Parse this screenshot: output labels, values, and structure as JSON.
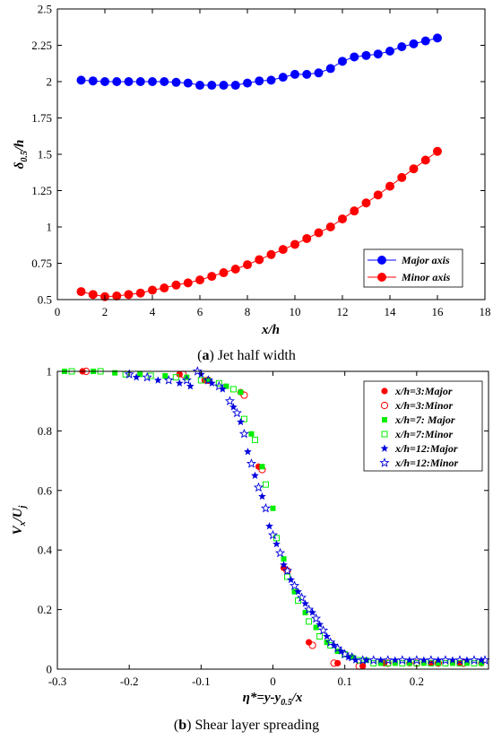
{
  "chart_data": [
    {
      "type": "scatter",
      "caption_label": "a",
      "caption_text": "Jet half width",
      "xlabel": "x/h",
      "ylabel_main": "δ",
      "ylabel_sub": "0.5",
      "ylabel_tail": "/h",
      "xlim": [
        0,
        18
      ],
      "ylim": [
        0.5,
        2.5
      ],
      "xticks": [
        "0",
        "2",
        "4",
        "6",
        "8",
        "10",
        "12",
        "14",
        "16",
        "18"
      ],
      "xtick_values": [
        0,
        2,
        4,
        6,
        8,
        10,
        12,
        14,
        16,
        18
      ],
      "yticks": [
        "0.5",
        "0.75",
        "1",
        "1.25",
        "1.5",
        "1.75",
        "2",
        "2.25",
        "2.5"
      ],
      "ytick_values": [
        0.5,
        0.75,
        1,
        1.25,
        1.5,
        1.75,
        2,
        2.25,
        2.5
      ],
      "legend_position": "lower-right",
      "series": [
        {
          "name": "Major axis",
          "color": "#0000ff",
          "marker": "circle",
          "line": true,
          "x": [
            1.0,
            1.5,
            2.0,
            2.5,
            3.0,
            3.5,
            4.0,
            4.5,
            5.0,
            5.5,
            6.0,
            6.5,
            7.0,
            7.5,
            8.0,
            8.5,
            9.0,
            9.5,
            10.0,
            10.5,
            11.0,
            11.5,
            12.0,
            12.5,
            13.0,
            13.5,
            14.0,
            14.5,
            15.0,
            15.5,
            16.0
          ],
          "y": [
            2.01,
            2.005,
            2.0,
            2.0,
            2.0,
            2.0,
            2.0,
            2.0,
            1.995,
            1.99,
            1.975,
            1.975,
            1.975,
            1.975,
            1.99,
            2.005,
            2.01,
            2.03,
            2.05,
            2.05,
            2.06,
            2.09,
            2.14,
            2.17,
            2.18,
            2.19,
            2.21,
            2.24,
            2.26,
            2.28,
            2.3
          ]
        },
        {
          "name": "Minor axis",
          "color": "#ff0000",
          "marker": "circle",
          "line": true,
          "x": [
            1.0,
            1.5,
            2.0,
            2.5,
            3.0,
            3.5,
            4.0,
            4.5,
            5.0,
            5.5,
            6.0,
            6.5,
            7.0,
            7.5,
            8.0,
            8.5,
            9.0,
            9.5,
            10.0,
            10.5,
            11.0,
            11.5,
            12.0,
            12.5,
            13.0,
            13.5,
            14.0,
            14.5,
            15.0,
            15.5,
            16.0
          ],
          "y": [
            0.555,
            0.535,
            0.52,
            0.525,
            0.535,
            0.545,
            0.565,
            0.58,
            0.6,
            0.615,
            0.635,
            0.66,
            0.685,
            0.71,
            0.74,
            0.775,
            0.81,
            0.845,
            0.88,
            0.92,
            0.96,
            1.0,
            1.055,
            1.11,
            1.165,
            1.22,
            1.28,
            1.34,
            1.4,
            1.46,
            1.52
          ]
        }
      ]
    },
    {
      "type": "scatter",
      "caption_label": "b",
      "caption_text": "Shear layer spreading",
      "xlabel_main": "η*=y-y",
      "xlabel_sub": "0.5",
      "xlabel_tail": "/x",
      "ylabel_main": "V",
      "ylabel_sub1": "x",
      "ylabel_mid": "/U",
      "ylabel_sub2": "j",
      "xlim": [
        -0.3,
        0.3
      ],
      "ylim": [
        0,
        1
      ],
      "xticks": [
        "-0.3",
        "-0.2",
        "-0.1",
        "0",
        "0.1",
        "0.2"
      ],
      "xtick_values": [
        -0.3,
        -0.2,
        -0.1,
        0,
        0.1,
        0.2
      ],
      "yticks": [
        "0",
        "0.2",
        "0.4",
        "0.6",
        "0.8",
        "1"
      ],
      "ytick_values": [
        0,
        0.2,
        0.4,
        0.6,
        0.8,
        1
      ],
      "legend_position": "top-right",
      "series": [
        {
          "name": "x/h=3:Major",
          "color": "#ff0000",
          "marker": "circle-filled",
          "x": [
            -0.265,
            -0.13,
            -0.095,
            -0.045,
            -0.02,
            0.015,
            0.05,
            0.09,
            0.125,
            0.155,
            0.19,
            0.22,
            0.26,
            0.29
          ],
          "y": [
            1.0,
            0.99,
            0.97,
            0.93,
            0.68,
            0.34,
            0.09,
            0.02,
            0.01,
            0.02,
            0.02,
            0.02,
            0.02,
            0.02
          ]
        },
        {
          "name": "x/h=3:Minor",
          "color": "#ff0000",
          "marker": "circle-open",
          "x": [
            -0.26,
            -0.125,
            -0.09,
            -0.04,
            -0.015,
            0.02,
            0.055,
            0.085,
            0.12,
            0.16,
            0.2,
            0.23,
            0.265
          ],
          "y": [
            1.0,
            0.99,
            0.97,
            0.92,
            0.67,
            0.33,
            0.08,
            0.02,
            0.01,
            0.02,
            0.02,
            0.02,
            0.02
          ]
        },
        {
          "name": "x/h=7: Major",
          "color": "#00ee00",
          "marker": "square-filled",
          "x": [
            -0.29,
            -0.25,
            -0.22,
            -0.185,
            -0.15,
            -0.12,
            -0.09,
            -0.065,
            -0.045,
            -0.03,
            -0.015,
            0.0,
            0.015,
            0.03,
            0.045,
            0.06,
            0.075,
            0.09,
            0.11,
            0.13,
            0.15,
            0.17,
            0.19,
            0.21,
            0.23,
            0.25,
            0.27,
            0.29
          ],
          "y": [
            1.0,
            1.0,
            0.995,
            0.99,
            0.985,
            0.98,
            0.97,
            0.95,
            0.93,
            0.79,
            0.68,
            0.54,
            0.37,
            0.26,
            0.19,
            0.14,
            0.09,
            0.06,
            0.04,
            0.03,
            0.02,
            0.02,
            0.02,
            0.02,
            0.02,
            0.02,
            0.02,
            0.02
          ]
        },
        {
          "name": "x/h=7:Minor",
          "color": "#00ee00",
          "marker": "square-open",
          "x": [
            -0.28,
            -0.24,
            -0.205,
            -0.17,
            -0.135,
            -0.1,
            -0.075,
            -0.055,
            -0.04,
            -0.025,
            -0.01,
            0.005,
            0.02,
            0.035,
            0.05,
            0.065,
            0.08,
            0.1,
            0.12,
            0.14,
            0.16,
            0.18,
            0.2,
            0.22,
            0.24,
            0.26,
            0.28
          ],
          "y": [
            1.0,
            1.0,
            0.99,
            0.985,
            0.98,
            0.97,
            0.96,
            0.94,
            0.84,
            0.77,
            0.62,
            0.44,
            0.31,
            0.23,
            0.16,
            0.11,
            0.08,
            0.05,
            0.03,
            0.02,
            0.02,
            0.02,
            0.02,
            0.02,
            0.02,
            0.02,
            0.02
          ]
        },
        {
          "name": "x/h=12:Major",
          "color": "#0000dd",
          "marker": "star-filled",
          "x": [
            -0.19,
            -0.16,
            -0.13,
            -0.115,
            -0.1,
            -0.085,
            -0.07,
            -0.055,
            -0.045,
            -0.035,
            -0.025,
            -0.015,
            -0.005,
            0.005,
            0.015,
            0.025,
            0.035,
            0.045,
            0.055,
            0.065,
            0.075,
            0.085,
            0.095,
            0.105,
            0.115,
            0.13,
            0.15,
            0.17,
            0.19,
            0.21,
            0.23,
            0.25,
            0.27,
            0.29
          ],
          "y": [
            0.98,
            0.97,
            0.96,
            0.95,
            0.99,
            0.96,
            0.94,
            0.88,
            0.83,
            0.73,
            0.65,
            0.58,
            0.48,
            0.42,
            0.35,
            0.3,
            0.26,
            0.22,
            0.19,
            0.15,
            0.11,
            0.08,
            0.06,
            0.04,
            0.03,
            0.03,
            0.03,
            0.03,
            0.03,
            0.03,
            0.03,
            0.03,
            0.03,
            0.03
          ]
        },
        {
          "name": "x/h=12:Minor",
          "color": "#0000dd",
          "marker": "star-open",
          "x": [
            -0.2,
            -0.175,
            -0.145,
            -0.12,
            -0.105,
            -0.09,
            -0.075,
            -0.06,
            -0.05,
            -0.04,
            -0.03,
            -0.02,
            -0.01,
            0.0,
            0.01,
            0.02,
            0.03,
            0.04,
            0.05,
            0.06,
            0.07,
            0.08,
            0.09,
            0.1,
            0.11,
            0.125,
            0.14,
            0.16,
            0.18,
            0.2,
            0.22,
            0.24,
            0.26,
            0.28,
            0.295
          ],
          "y": [
            0.99,
            0.98,
            0.97,
            0.97,
            1.0,
            0.97,
            0.95,
            0.9,
            0.86,
            0.79,
            0.69,
            0.61,
            0.54,
            0.45,
            0.39,
            0.33,
            0.28,
            0.24,
            0.2,
            0.17,
            0.13,
            0.09,
            0.07,
            0.05,
            0.04,
            0.03,
            0.03,
            0.03,
            0.03,
            0.03,
            0.03,
            0.03,
            0.03,
            0.03,
            0.03
          ]
        }
      ]
    }
  ]
}
